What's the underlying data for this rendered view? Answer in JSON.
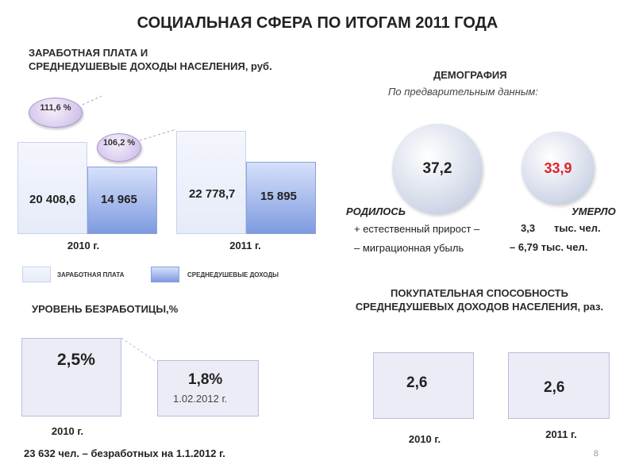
{
  "title": "СОЦИАЛЬНАЯ СФЕРА ПО ИТОГАМ 2011 ГОДА",
  "salary_section": {
    "heading_line1": "ЗАРАБОТНАЯ ПЛАТА И",
    "heading_line2": "СРЕДНЕДУШЕВЫЕ ДОХОДЫ НАСЕЛЕНИЯ, руб.",
    "bubble_2011_vs_2010_salary": "111,6 %",
    "bubble_2011_vs_2010_income": "106,2 %",
    "legend_salary": "ЗАРАБОТНАЯ ПЛАТА",
    "legend_income": "СРЕДНЕДУШЕВЫЕ ДОХОДЫ"
  },
  "demography": {
    "heading": "ДЕМОГРАФИЯ",
    "subheading": "По предварительным данным:",
    "born_value": "37,2",
    "died_value": "33,9",
    "born_label": "РОДИЛОСЬ",
    "died_label": "УМЕРЛО",
    "natural_growth": "+ естественный прирост –",
    "natural_growth_value": "3,3",
    "natural_growth_unit": "тыс. чел.",
    "migration": "– миграционная убыль",
    "migration_value": "– 6,79 тыс. чел."
  },
  "unemployment": {
    "heading": "УРОВЕНЬ БЕЗРАБОТИЦЫ,%",
    "value_2010": "2,5%",
    "value_2012": "1,8%",
    "date_2012": "1.02.2012 г.",
    "year_2010": "2010 г.",
    "footnote_bold": "23 632 чел.",
    "footnote_rest": " – безработных на 1.1.2012 г."
  },
  "purchasing": {
    "heading_line1": "ПОКУПАТЕЛЬНАЯ СПОСОБНОСТЬ",
    "heading_line2": "СРЕДНЕДУШЕВЫХ ДОХОДОВ НАСЕЛЕНИЯ, раз.",
    "value_2010": "2,6",
    "value_2011": "2,6",
    "year_2010": "2010 г.",
    "year_2011": "2011 г."
  },
  "page_number": "8",
  "chart_data": [
    {
      "type": "bar",
      "categories": [
        "2010 г.",
        "2011 г."
      ],
      "series": [
        {
          "name": "ЗАРАБОТНАЯ ПЛАТА",
          "values": [
            20408.6,
            22778.7
          ],
          "labels": [
            "20 408,6",
            "22 778,7"
          ],
          "color": "#eaeefa"
        },
        {
          "name": "СРЕДНЕДУШЕВЫЕ ДОХОДЫ",
          "values": [
            14965,
            15895
          ],
          "labels": [
            "14  965",
            "15  895"
          ],
          "color": "#9fb4ea"
        }
      ],
      "title": "ЗАРАБОТНАЯ ПЛАТА И СРЕДНЕДУШЕВЫЕ ДОХОДЫ НАСЕЛЕНИЯ, руб.",
      "legend": "bottom-left",
      "grid": false
    },
    {
      "type": "bar",
      "categories": [
        "2010 г.",
        "1.02.2012 г."
      ],
      "values": [
        2.5,
        1.8
      ],
      "title": "УРОВЕНЬ БЕЗРАБОТИЦЫ,%"
    },
    {
      "type": "bar",
      "categories": [
        "2010 г.",
        "2011 г."
      ],
      "values": [
        2.6,
        2.6
      ],
      "title": "ПОКУПАТЕЛЬНАЯ СПОСОБНОСТЬ СРЕДНЕДУШЕВЫХ ДОХОДОВ НАСЕЛЕНИЯ, раз."
    }
  ]
}
